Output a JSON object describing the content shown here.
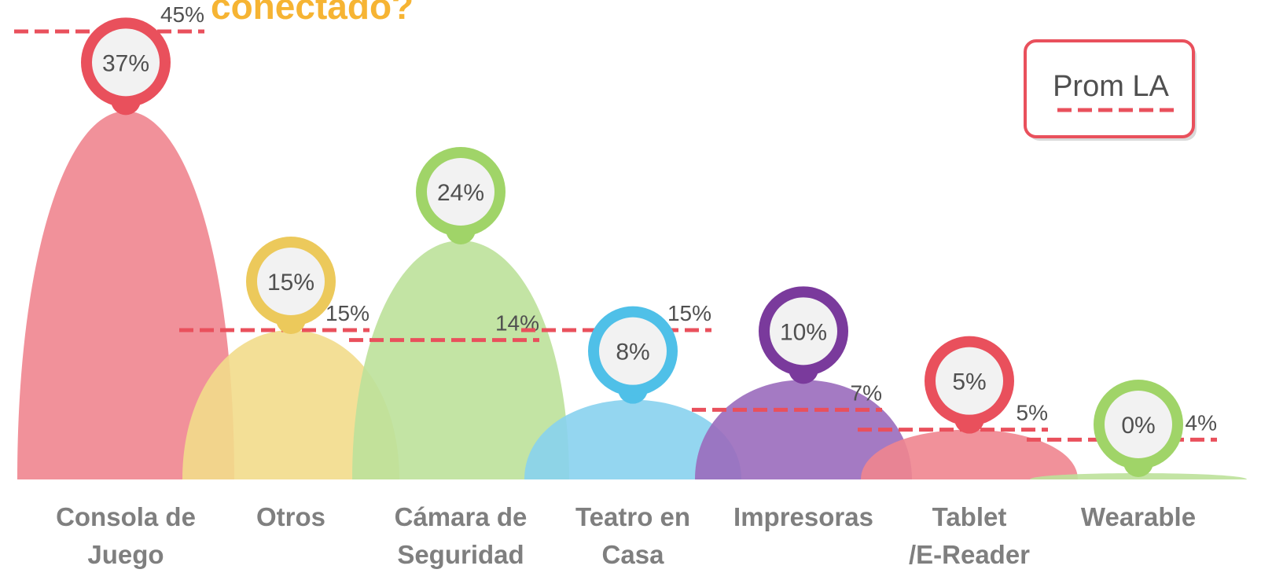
{
  "chart_data": {
    "type": "hump",
    "title": "conectado?",
    "categories": [
      [
        "Consola de",
        "Juego"
      ],
      [
        "Otros"
      ],
      [
        "Cámara de",
        "Seguridad"
      ],
      [
        "Teatro en",
        "Casa"
      ],
      [
        "Impresoras"
      ],
      [
        "Tablet",
        "/E-Reader"
      ],
      [
        "Wearable"
      ]
    ],
    "values": [
      37,
      15,
      24,
      8,
      10,
      5,
      0
    ],
    "value_labels": [
      "37%",
      "15%",
      "24%",
      "8%",
      "10%",
      "5%",
      "0%"
    ],
    "colors": [
      "#f0858f",
      "#f2db8b",
      "#bde19a",
      "#88d1ee",
      "#9a6cbd",
      "#f0858f",
      "#bde19a"
    ],
    "pin_colors": [
      "#e9505c",
      "#ecc95b",
      "#a0d468",
      "#4fc0e8",
      "#7a3a9c",
      "#e9505c",
      "#a0d468"
    ],
    "average": {
      "name": "Prom LA",
      "color": "#e9505c",
      "values": [
        45,
        15,
        14,
        15,
        7,
        5,
        4
      ],
      "value_labels": [
        "45%",
        "15%",
        "14%",
        "15%",
        "7%",
        "5%",
        "4%"
      ]
    },
    "ylim": [
      0,
      45
    ]
  }
}
